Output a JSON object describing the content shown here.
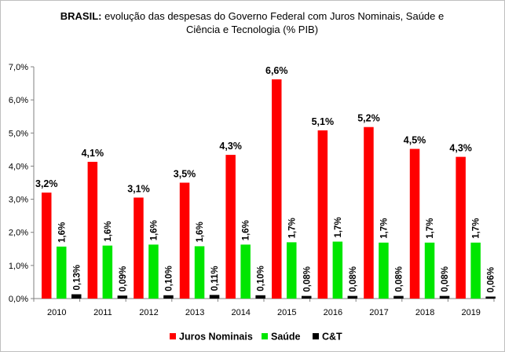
{
  "chart_data": {
    "type": "bar",
    "title_bold": "BRASIL:",
    "title_rest": " evolução das despesas do Governo Federal com Juros Nominais, Saúde e",
    "title_line2": "Ciência e Tecnologia (% PIB)",
    "categories": [
      "2010",
      "2011",
      "2012",
      "2013",
      "2014",
      "2015",
      "2016",
      "2017",
      "2018",
      "2019"
    ],
    "series": [
      {
        "name": "Juros Nominais",
        "color": "#ff0000",
        "values": [
          3.2,
          4.13,
          3.05,
          3.5,
          4.34,
          6.62,
          5.08,
          5.18,
          4.52,
          4.28
        ],
        "labels": [
          "3,2%",
          "4,1%",
          "3,1%",
          "3,5%",
          "4,3%",
          "6,6%",
          "5,1%",
          "5,2%",
          "4,5%",
          "4,3%"
        ]
      },
      {
        "name": "Saúde",
        "color": "#00e600",
        "values": [
          1.57,
          1.6,
          1.63,
          1.58,
          1.63,
          1.7,
          1.72,
          1.69,
          1.69,
          1.69
        ],
        "labels": [
          "1,6%",
          "1,6%",
          "1,6%",
          "1,6%",
          "1,6%",
          "1,7%",
          "1,7%",
          "1,7%",
          "1,7%",
          "1,7%"
        ]
      },
      {
        "name": "C&T",
        "color": "#000000",
        "values": [
          0.13,
          0.09,
          0.1,
          0.11,
          0.1,
          0.08,
          0.08,
          0.08,
          0.08,
          0.06
        ],
        "labels": [
          "0,13%",
          "0,09%",
          "0,10%",
          "0,11%",
          "0,10%",
          "0,08%",
          "0,08%",
          "0,08%",
          "0,08%",
          "0,06%"
        ]
      }
    ],
    "yticks": [
      0,
      1,
      2,
      3,
      4,
      5,
      6,
      7
    ],
    "ytick_labels": [
      "0,0%",
      "1,0%",
      "2,0%",
      "3,0%",
      "4,0%",
      "5,0%",
      "6,0%",
      "7,0%"
    ],
    "ylim": [
      0,
      7
    ],
    "grid": false,
    "legend_position": "bottom"
  }
}
